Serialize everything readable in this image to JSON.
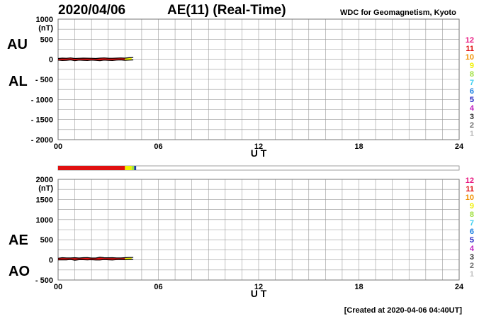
{
  "header": {
    "date": "2020/04/06",
    "title": "AE(11) (Real-Time)",
    "org": "WDC for Geomagnetism, Kyoto"
  },
  "footer": {
    "created": "[Created at 2020-04-06 04:40UT]"
  },
  "legend": {
    "labels": [
      "12",
      "11",
      "10",
      "9",
      "8",
      "7",
      "6",
      "5",
      "4",
      "3",
      "2",
      "1"
    ],
    "colors": [
      "#e8157f",
      "#e01010",
      "#f09000",
      "#f0f000",
      "#a0e040",
      "#40d0f0",
      "#1a7fe0",
      "#2020c0",
      "#c020c0",
      "#303030",
      "#707070",
      "#c0c0c0"
    ]
  },
  "chart_data": [
    {
      "type": "line",
      "panel": "AU/AL",
      "labels": {
        "upper": "AU",
        "lower": "AL"
      },
      "xlabel": "U T",
      "xlim": [
        0,
        24
      ],
      "xticks": [
        0,
        6,
        12,
        18,
        24
      ],
      "xtick_labels": [
        "00",
        "06",
        "12",
        "18",
        "24"
      ],
      "ylabel": "(nT)",
      "ylim": [
        -2000,
        1000
      ],
      "yticks": [
        1000,
        500,
        0,
        -500,
        -1000,
        -1500,
        -2000
      ],
      "ytick_labels": [
        "1000",
        "500",
        "0",
        "- 500",
        "- 1000",
        "- 1500",
        "- 2000"
      ],
      "series": [
        {
          "color": "#000000",
          "x": [
            0.0,
            0.25,
            0.5,
            0.75,
            1.0,
            1.25,
            1.5,
            1.75,
            2.0,
            2.25,
            2.5,
            2.75,
            3.0,
            3.25,
            3.5,
            3.75,
            4.0,
            4.25,
            4.5
          ],
          "y": [
            20,
            30,
            25,
            35,
            20,
            25,
            30,
            28,
            25,
            20,
            30,
            35,
            28,
            25,
            30,
            35,
            30,
            40,
            45
          ]
        },
        {
          "color": "#000000",
          "x": [
            0.0,
            0.25,
            0.5,
            0.75,
            1.0,
            1.25,
            1.5,
            1.75,
            2.0,
            2.25,
            2.5,
            2.75,
            3.0,
            3.25,
            3.5,
            3.75,
            4.0,
            4.25,
            4.5
          ],
          "y": [
            -20,
            -30,
            -25,
            -15,
            -35,
            -20,
            -25,
            -30,
            -20,
            -25,
            -35,
            -20,
            -25,
            -30,
            -20,
            -15,
            -25,
            -20,
            -15
          ]
        }
      ],
      "fill_segments": [
        {
          "x0": 0.0,
          "x1": 4.0,
          "color": "#e01010"
        },
        {
          "x0": 4.0,
          "x1": 4.4,
          "color": "#f0f000"
        },
        {
          "x0": 4.4,
          "x1": 4.6,
          "color": "#a0e040"
        }
      ]
    },
    {
      "type": "line",
      "panel": "AE/AO",
      "labels": {
        "upper": "AE",
        "lower": "AO"
      },
      "xlabel": "U T",
      "xlim": [
        0,
        24
      ],
      "xticks": [
        0,
        6,
        12,
        18,
        24
      ],
      "xtick_labels": [
        "00",
        "06",
        "12",
        "18",
        "24"
      ],
      "ylabel": "(nT)",
      "ylim": [
        -500,
        2000
      ],
      "yticks": [
        2000,
        1500,
        1000,
        500,
        0,
        -500
      ],
      "ytick_labels": [
        "2000",
        "1500",
        "1000",
        "500",
        "0",
        "- 500"
      ],
      "series": [
        {
          "color": "#000000",
          "x": [
            0.0,
            0.25,
            0.5,
            0.75,
            1.0,
            1.25,
            1.5,
            1.75,
            2.0,
            2.25,
            2.5,
            2.75,
            3.0,
            3.25,
            3.5,
            3.75,
            4.0,
            4.25,
            4.5
          ],
          "y": [
            40,
            55,
            50,
            50,
            55,
            45,
            55,
            58,
            45,
            45,
            65,
            55,
            53,
            55,
            50,
            50,
            55,
            60,
            60
          ]
        },
        {
          "color": "#000000",
          "x": [
            0.0,
            0.25,
            0.5,
            0.75,
            1.0,
            1.25,
            1.5,
            1.75,
            2.0,
            2.25,
            2.5,
            2.75,
            3.0,
            3.25,
            3.5,
            3.75,
            4.0,
            4.25,
            4.5
          ],
          "y": [
            0,
            0,
            0,
            10,
            -8,
            3,
            3,
            -1,
            3,
            -3,
            -3,
            8,
            2,
            -3,
            5,
            10,
            3,
            10,
            15
          ]
        }
      ],
      "fill_segments": [
        {
          "x0": 0.0,
          "x1": 4.0,
          "color": "#e01010"
        },
        {
          "x0": 4.0,
          "x1": 4.4,
          "color": "#f0f000"
        },
        {
          "x0": 4.4,
          "x1": 4.6,
          "color": "#a0e040"
        }
      ]
    }
  ],
  "activity_bar": {
    "xlim": [
      0,
      24
    ],
    "segments": [
      {
        "x0": 0.0,
        "x1": 4.0,
        "color": "#e01010"
      },
      {
        "x0": 4.0,
        "x1": 4.4,
        "color": "#f0f000"
      },
      {
        "x0": 4.4,
        "x1": 4.55,
        "color": "#a0e040"
      },
      {
        "x0": 4.55,
        "x1": 4.67,
        "color": "#1a3fa0"
      }
    ]
  }
}
